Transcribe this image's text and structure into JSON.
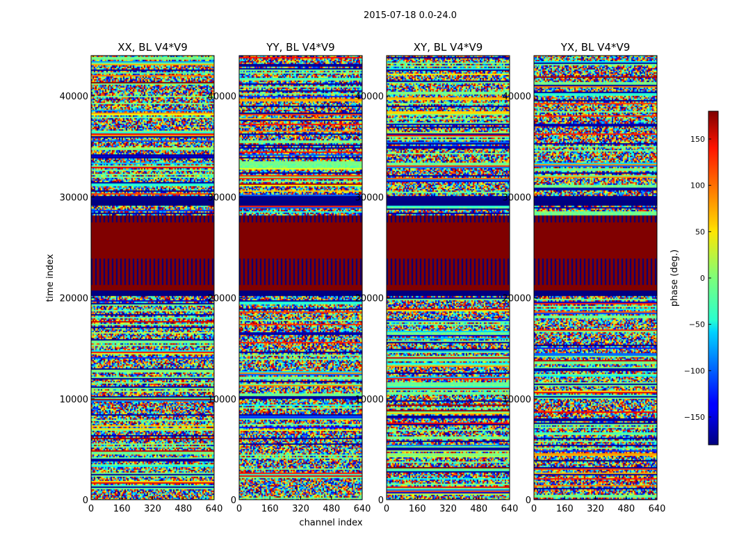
{
  "suptitle": "2015-07-18 0.0-24.0",
  "chart_data": {
    "type": "heatmap",
    "panels": [
      {
        "title": "XX, BL V4*V9"
      },
      {
        "title": "YY, BL V4*V9"
      },
      {
        "title": "XY, BL V4*V9"
      },
      {
        "title": "YX, BL V4*V9"
      }
    ],
    "xlabel": "channel index",
    "ylabel": "time index",
    "xlim": [
      0,
      640
    ],
    "ylim": [
      0,
      44000
    ],
    "xticks": [
      0,
      160,
      320,
      480,
      640
    ],
    "yticks": [
      0,
      10000,
      20000,
      30000,
      40000
    ],
    "colorbar": {
      "label": "phase (deg.)",
      "range": [
        -180,
        180
      ],
      "ticks": [
        -150,
        -100,
        -50,
        0,
        50,
        100,
        150
      ],
      "colormap": "jet"
    },
    "bands": [
      {
        "from": 20300,
        "to": 20800,
        "phase": -180
      },
      {
        "from": 20800,
        "to": 21300,
        "phase": 180
      },
      {
        "from": 24000,
        "to": 27600,
        "phase": 180
      },
      {
        "from": 29200,
        "to": 29700,
        "phase": -180
      },
      {
        "from": 29700,
        "to": 30200,
        "phase": -175
      }
    ],
    "striped_bands": [
      {
        "from": 21300,
        "to": 24000
      },
      {
        "from": 27600,
        "to": 28200
      }
    ]
  }
}
